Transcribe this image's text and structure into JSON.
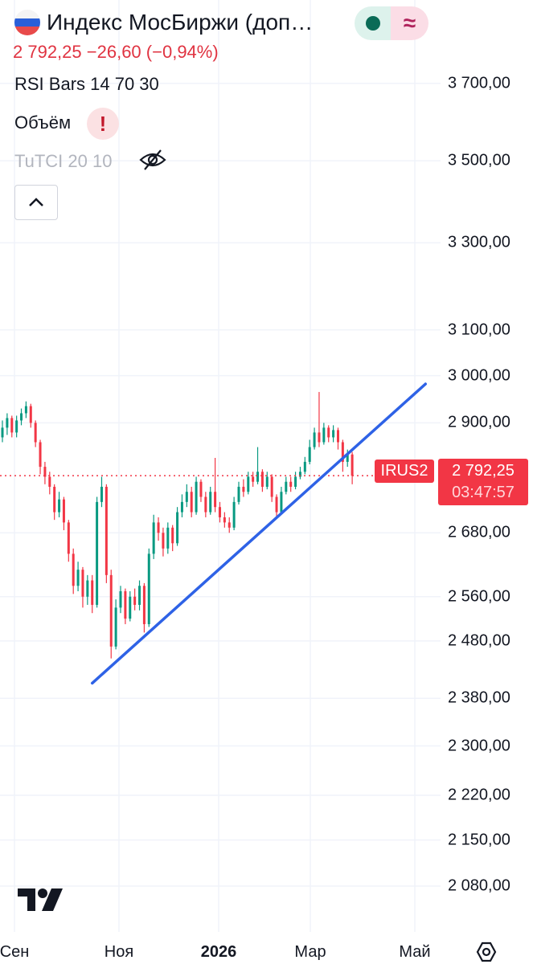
{
  "header": {
    "title": "Индекс МосБиржи (доп…",
    "flag_icon": "russia-flag-icon",
    "status_icons": [
      "market-open-dot-icon",
      "delayed-data-approx-icon"
    ],
    "status_approx_glyph": "≈",
    "quote": {
      "price": "2 792,25",
      "change": "−26,60",
      "change_pct": "(−0,94%)"
    }
  },
  "indicators": [
    {
      "label": "RSI Bars 14 70 30"
    },
    {
      "label": "Объём",
      "warning": "!"
    },
    {
      "label": "TuTCI 20 10",
      "hidden": true
    }
  ],
  "price_axis": {
    "scale": "log",
    "labels": [
      "3 700,00",
      "3 500,00",
      "3 300,00",
      "3 100,00",
      "3 000,00",
      "2 900,00",
      "2 680,00",
      "2 560,00",
      "2 480,00",
      "2 380,00",
      "2 300,00",
      "2 220,00",
      "2 150,00",
      "2 080,00"
    ]
  },
  "time_axis": {
    "labels": [
      "Сен",
      "Ноя",
      "2026",
      "Мар",
      "Май"
    ],
    "bold": "2026"
  },
  "last_price": {
    "symbol": "IRUS2",
    "price": "2 792,25",
    "countdown": "03:47:57"
  },
  "colors": {
    "up": "#089981",
    "down": "#f23645",
    "trendline": "#2e62e6",
    "price_line": "#f23645"
  },
  "chart_data": {
    "type": "candlestick",
    "y_scale": "log",
    "last": 2792.25,
    "ohlc": [
      [
        2870,
        2905,
        2860,
        2890
      ],
      [
        2890,
        2920,
        2875,
        2910
      ],
      [
        2910,
        2915,
        2870,
        2880
      ],
      [
        2880,
        2915,
        2870,
        2905
      ],
      [
        2905,
        2930,
        2895,
        2920
      ],
      [
        2920,
        2945,
        2910,
        2935
      ],
      [
        2935,
        2940,
        2890,
        2900
      ],
      [
        2900,
        2905,
        2850,
        2860
      ],
      [
        2860,
        2865,
        2795,
        2810
      ],
      [
        2810,
        2820,
        2775,
        2790
      ],
      [
        2790,
        2800,
        2755,
        2770
      ],
      [
        2770,
        2775,
        2705,
        2720
      ],
      [
        2720,
        2760,
        2710,
        2745
      ],
      [
        2745,
        2750,
        2685,
        2700
      ],
      [
        2700,
        2705,
        2625,
        2640
      ],
      [
        2640,
        2650,
        2565,
        2580
      ],
      [
        2580,
        2625,
        2570,
        2610
      ],
      [
        2610,
        2615,
        2540,
        2560
      ],
      [
        2560,
        2600,
        2545,
        2590
      ],
      [
        2590,
        2600,
        2530,
        2545
      ],
      [
        2545,
        2750,
        2540,
        2740
      ],
      [
        2740,
        2790,
        2730,
        2770
      ],
      [
        2770,
        2775,
        2585,
        2600
      ],
      [
        2600,
        2610,
        2449,
        2470
      ],
      [
        2470,
        2555,
        2465,
        2540
      ],
      [
        2540,
        2580,
        2530,
        2570
      ],
      [
        2570,
        2575,
        2510,
        2520
      ],
      [
        2520,
        2570,
        2515,
        2560
      ],
      [
        2560,
        2575,
        2535,
        2545
      ],
      [
        2545,
        2590,
        2535,
        2580
      ],
      [
        2580,
        2585,
        2495,
        2510
      ],
      [
        2510,
        2650,
        2505,
        2640
      ],
      [
        2640,
        2715,
        2630,
        2700
      ],
      [
        2700,
        2710,
        2665,
        2680
      ],
      [
        2680,
        2690,
        2635,
        2650
      ],
      [
        2650,
        2700,
        2640,
        2690
      ],
      [
        2690,
        2695,
        2645,
        2660
      ],
      [
        2660,
        2730,
        2655,
        2720
      ],
      [
        2720,
        2755,
        2710,
        2740
      ],
      [
        2740,
        2775,
        2730,
        2760
      ],
      [
        2760,
        2770,
        2710,
        2720
      ],
      [
        2720,
        2790,
        2715,
        2780
      ],
      [
        2780,
        2785,
        2740,
        2750
      ],
      [
        2750,
        2760,
        2710,
        2720
      ],
      [
        2720,
        2770,
        2715,
        2760
      ],
      [
        2760,
        2828,
        2720,
        2730
      ],
      [
        2730,
        2740,
        2700,
        2710
      ],
      [
        2710,
        2720,
        2690,
        2700
      ],
      [
        2700,
        2710,
        2680,
        2690
      ],
      [
        2690,
        2750,
        2685,
        2740
      ],
      [
        2740,
        2780,
        2735,
        2770
      ],
      [
        2770,
        2785,
        2750,
        2760
      ],
      [
        2760,
        2800,
        2755,
        2790
      ],
      [
        2790,
        2800,
        2770,
        2780
      ],
      [
        2780,
        2850,
        2775,
        2800
      ],
      [
        2800,
        2805,
        2760,
        2770
      ],
      [
        2770,
        2800,
        2765,
        2790
      ],
      [
        2790,
        2795,
        2740,
        2750
      ],
      [
        2750,
        2755,
        2710,
        2720
      ],
      [
        2720,
        2770,
        2715,
        2760
      ],
      [
        2760,
        2790,
        2755,
        2780
      ],
      [
        2780,
        2790,
        2760,
        2770
      ],
      [
        2770,
        2800,
        2765,
        2790
      ],
      [
        2790,
        2810,
        2785,
        2800
      ],
      [
        2800,
        2830,
        2795,
        2820
      ],
      [
        2820,
        2865,
        2815,
        2850
      ],
      [
        2850,
        2890,
        2845,
        2880
      ],
      [
        2880,
        2965,
        2850,
        2860
      ],
      [
        2860,
        2900,
        2855,
        2890
      ],
      [
        2890,
        2895,
        2860,
        2870
      ],
      [
        2870,
        2895,
        2860,
        2885
      ],
      [
        2885,
        2890,
        2845,
        2860
      ],
      [
        2860,
        2865,
        2800,
        2820
      ],
      [
        2820,
        2845,
        2810,
        2835
      ],
      [
        2835,
        2840,
        2775,
        2792
      ]
    ],
    "trendline": {
      "from": {
        "bar": 19,
        "price": 2406
      },
      "to": {
        "bar": 89.5,
        "price": 2982
      }
    }
  }
}
